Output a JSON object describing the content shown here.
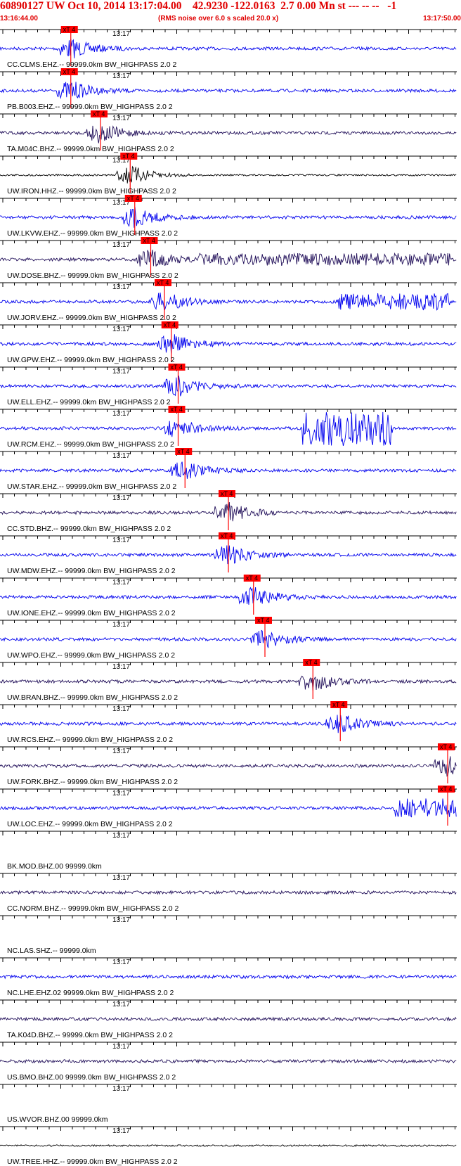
{
  "header": {
    "title": "60890127 UW Oct 10, 2014 13:17:04.00    42.9230 -122.0163  2.7 0.00 Mn st --- -- --   -1",
    "start_time": "13:16:44.00",
    "note": "(RMS noise over 6.0 s scaled 20.0 x)",
    "end_time": "13:17:50.00"
  },
  "time_mark": "13:17",
  "pick_label": "xT 4",
  "colors": {
    "header": "#e00000",
    "pick": "#ff0000",
    "wave_blue": "#0000ee",
    "wave_navy": "#22105a",
    "wave_black": "#000000",
    "axis": "#000000"
  },
  "traces": [
    {
      "label": "CC.CLMS.EHZ.-- 99999.0km BW_HIGHPASS  2.0  2",
      "color": "blue",
      "pick": 0.155
    },
    {
      "label": "PB.B003.EHZ.-- 99999.0km BW_HIGHPASS  2.0  2",
      "color": "blue",
      "pick": 0.155
    },
    {
      "label": "TA.M04C.BHZ.-- 99999.0km BW_HIGHPASS  2.0  2",
      "color": "navy",
      "pick": 0.22
    },
    {
      "label": "UW.IRON.HHZ.-- 99999.0km BW_HIGHPASS  2.0  2",
      "color": "black",
      "pick": 0.285
    },
    {
      "label": "UW.LKVW.EHZ.-- 99999.0km BW_HIGHPASS  2.0  2",
      "color": "blue",
      "pick": 0.295
    },
    {
      "label": "UW.DOSE.BHZ.-- 99999.0km BW_HIGHPASS  2.0  2",
      "color": "navy",
      "pick": 0.33
    },
    {
      "label": "UW.JORV.EHZ.-- 99999.0km BW_HIGHPASS  2.0  2",
      "color": "blue",
      "pick": 0.36
    },
    {
      "label": "UW.GPW.EHZ.-- 99999.0km BW_HIGHPASS  2.0  2",
      "color": "blue",
      "pick": 0.375
    },
    {
      "label": "UW.ELL.EHZ.-- 99999.0km BW_HIGHPASS  2.0  2",
      "color": "blue",
      "pick": 0.39
    },
    {
      "label": "UW.RCM.EHZ.-- 99999.0km BW_HIGHPASS  2.0  2",
      "color": "blue",
      "pick": 0.39
    },
    {
      "label": "UW.STAR.EHZ.-- 99999.0km BW_HIGHPASS  2.0  2",
      "color": "blue",
      "pick": 0.405
    },
    {
      "label": "CC.STD.BHZ.-- 99999.0km BW_HIGHPASS  2.0  2",
      "color": "navy",
      "pick": 0.5
    },
    {
      "label": "UW.MDW.EHZ.-- 99999.0km BW_HIGHPASS  2.0  2",
      "color": "blue",
      "pick": 0.5
    },
    {
      "label": "UW.IONE.EHZ.-- 99999.0km BW_HIGHPASS  2.0  2",
      "color": "blue",
      "pick": 0.555
    },
    {
      "label": "UW.WPO.EHZ.-- 99999.0km BW_HIGHPASS  2.0  2",
      "color": "blue",
      "pick": 0.58
    },
    {
      "label": "UW.BRAN.BHZ.-- 99999.0km BW_HIGHPASS  2.0  2",
      "color": "navy",
      "pick": 0.685
    },
    {
      "label": "UW.RCS.EHZ.-- 99999.0km BW_HIGHPASS  2.0  2",
      "color": "blue",
      "pick": 0.745
    },
    {
      "label": "UW.FORK.BHZ.-- 99999.0km BW_HIGHPASS  2.0  2",
      "color": "navy",
      "pick": 0.98
    },
    {
      "label": "UW.LOC.EHZ.-- 99999.0km BW_HIGHPASS  2.0  2",
      "color": "blue",
      "pick": 0.98
    },
    {
      "label": "BK.MOD.BHZ.00 99999.0km",
      "color": "none",
      "pick": null
    },
    {
      "label": "CC.NORM.BHZ.-- 99999.0km BW_HIGHPASS  2.0  2",
      "color": "navy",
      "pick": null
    },
    {
      "label": "NC.LAS.SHZ.-- 99999.0km",
      "color": "none",
      "pick": null
    },
    {
      "label": "NC.LHE.EHZ.02 99999.0km BW_HIGHPASS  2.0  2",
      "color": "blue",
      "pick": null
    },
    {
      "label": "TA.K04D.BHZ.-- 99999.0km BW_HIGHPASS  2.0  2",
      "color": "navy",
      "pick": null
    },
    {
      "label": "US.BMO.BHZ.00 99999.0km BW_HIGHPASS  2.0  2",
      "color": "navy",
      "pick": null
    },
    {
      "label": "US.WVOR.BHZ.00 99999.0km",
      "color": "none",
      "pick": null
    },
    {
      "label": "UW.TREE.HHZ.-- 99999.0km BW_HIGHPASS  2.0  2",
      "color": "black",
      "pick": null
    }
  ]
}
